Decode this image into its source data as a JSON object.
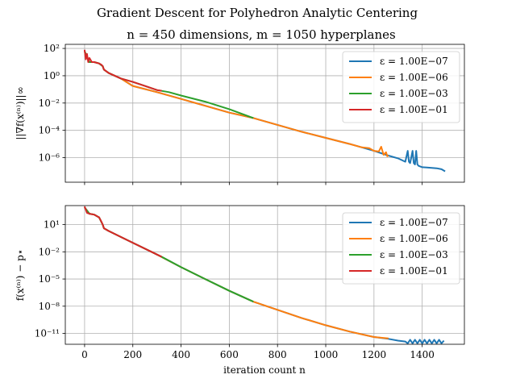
{
  "figure": {
    "suptitle": "Gradient Descent for Polyhedron Analytic Centering",
    "subtitle": "n = 450 dimensions, m = 1050 hyperplanes",
    "xlabel": "iteration count n"
  },
  "chart_data": [
    {
      "type": "line",
      "scale_y": "log",
      "ylabel": "||∇f(x⁽ⁿ⁾)||∞",
      "xlim": [
        -80,
        1575
      ],
      "ylim_log10": [
        -7.8,
        2.3
      ],
      "xticks": [
        {
          "value": 0,
          "label": "0"
        },
        {
          "value": 200,
          "label": "200"
        },
        {
          "value": 400,
          "label": "400"
        },
        {
          "value": 600,
          "label": "600"
        },
        {
          "value": 800,
          "label": "800"
        },
        {
          "value": 1000,
          "label": "1000"
        },
        {
          "value": 1200,
          "label": "1200"
        },
        {
          "value": 1400,
          "label": "1400"
        }
      ],
      "yticks": [
        {
          "exp": 2,
          "label": "10²"
        },
        {
          "exp": 0,
          "label": "10⁰"
        },
        {
          "exp": -2,
          "label": "10⁻²"
        },
        {
          "exp": -4,
          "label": "10⁻⁴"
        },
        {
          "exp": -6,
          "label": "10⁻⁶"
        }
      ],
      "grid": true,
      "legend_position": "top-right",
      "series": [
        {
          "name": "ε = 1.00E−07",
          "color": "#1f77b4",
          "x": [
            0,
            20,
            40,
            60,
            75,
            80,
            100,
            150,
            200,
            300,
            400,
            500,
            600,
            700,
            800,
            900,
            1000,
            1100,
            1200,
            1260,
            1300,
            1330,
            1340,
            1345,
            1350,
            1360,
            1365,
            1370,
            1375,
            1380,
            1385,
            1400,
            1420,
            1440,
            1460,
            1480,
            1495
          ],
          "y_log10": [
            1.8,
            1.0,
            1.0,
            0.9,
            0.7,
            0.45,
            0.2,
            -0.2,
            -0.75,
            -1.2,
            -1.7,
            -2.2,
            -2.7,
            -3.1,
            -3.6,
            -4.1,
            -4.55,
            -5.0,
            -5.5,
            -5.85,
            -6.05,
            -6.3,
            -5.5,
            -6.3,
            -6.4,
            -5.5,
            -6.4,
            -6.5,
            -5.5,
            -6.5,
            -6.6,
            -6.7,
            -6.72,
            -6.75,
            -6.78,
            -6.85,
            -7.0
          ]
        },
        {
          "name": "ε = 1.00E−06",
          "color": "#ff7f0e",
          "x": [
            0,
            20,
            40,
            60,
            75,
            80,
            100,
            150,
            200,
            300,
            400,
            500,
            600,
            700,
            800,
            900,
            1000,
            1100,
            1150,
            1180,
            1200,
            1220,
            1230,
            1240,
            1250,
            1255,
            1260
          ],
          "y_log10": [
            1.8,
            1.0,
            1.0,
            0.9,
            0.7,
            0.45,
            0.2,
            -0.2,
            -0.75,
            -1.2,
            -1.7,
            -2.2,
            -2.7,
            -3.1,
            -3.6,
            -4.1,
            -4.55,
            -5.0,
            -5.25,
            -5.3,
            -5.5,
            -5.55,
            -5.2,
            -5.8,
            -5.6,
            -5.9,
            -5.85
          ]
        },
        {
          "name": "ε = 1.00E−03",
          "color": "#2ca02c",
          "x": [
            0,
            20,
            40,
            60,
            75,
            80,
            100,
            150,
            200,
            250,
            300,
            350,
            400,
            500,
            600,
            700
          ],
          "y_log10": [
            1.8,
            1.0,
            1.0,
            0.9,
            0.7,
            0.45,
            0.2,
            -0.2,
            -0.45,
            -0.75,
            -1.05,
            -1.2,
            -1.45,
            -1.9,
            -2.45,
            -3.1
          ]
        },
        {
          "name": "ε = 1.00E−01",
          "color": "#d62728",
          "x": [
            0,
            5,
            10,
            15,
            20,
            30,
            40,
            50,
            60,
            70,
            75,
            80,
            100,
            150,
            200,
            250,
            300,
            320
          ],
          "y_log10": [
            1.9,
            1.2,
            1.6,
            1.0,
            1.3,
            1.0,
            1.0,
            0.95,
            0.9,
            0.8,
            0.7,
            0.45,
            0.2,
            -0.2,
            -0.45,
            -0.75,
            -1.05,
            -1.1
          ]
        }
      ]
    },
    {
      "type": "line",
      "scale_y": "log",
      "ylabel": "f(x⁽ⁿ⁾) − p⋆",
      "xlim": [
        -80,
        1575
      ],
      "ylim_log10": [
        -12.2,
        3.1
      ],
      "xticks": [
        {
          "value": 0,
          "label": "0"
        },
        {
          "value": 200,
          "label": "200"
        },
        {
          "value": 400,
          "label": "400"
        },
        {
          "value": 600,
          "label": "600"
        },
        {
          "value": 800,
          "label": "800"
        },
        {
          "value": 1000,
          "label": "1000"
        },
        {
          "value": 1200,
          "label": "1200"
        },
        {
          "value": 1400,
          "label": "1400"
        }
      ],
      "yticks": [
        {
          "exp": 1,
          "label": "10¹"
        },
        {
          "exp": -2,
          "label": "10⁻²"
        },
        {
          "exp": -5,
          "label": "10⁻⁵"
        },
        {
          "exp": -8,
          "label": "10⁻⁸"
        },
        {
          "exp": -11,
          "label": "10⁻¹¹"
        }
      ],
      "grid": true,
      "legend_position": "top-right",
      "series": [
        {
          "name": "ε = 1.00E−07",
          "color": "#1f77b4",
          "x": [
            0,
            20,
            40,
            60,
            75,
            80,
            100,
            200,
            300,
            400,
            500,
            600,
            700,
            800,
            900,
            1000,
            1100,
            1200,
            1260,
            1300,
            1330,
            1340,
            1350,
            1360,
            1370,
            1380,
            1390,
            1400,
            1410,
            1420,
            1430,
            1440,
            1450,
            1460,
            1470,
            1480,
            1490
          ],
          "y_log10": [
            2.9,
            2.2,
            2.1,
            1.8,
            1.0,
            0.6,
            0.3,
            -1.0,
            -2.3,
            -3.7,
            -5.0,
            -6.3,
            -7.5,
            -8.4,
            -9.3,
            -10.1,
            -10.8,
            -11.4,
            -11.6,
            -11.8,
            -11.9,
            -12.1,
            -11.7,
            -12.1,
            -11.7,
            -12.1,
            -11.7,
            -12.1,
            -11.7,
            -12.1,
            -11.7,
            -12.1,
            -11.7,
            -12.1,
            -11.7,
            -12.1,
            -11.8
          ]
        },
        {
          "name": "ε = 1.00E−06",
          "color": "#ff7f0e",
          "x": [
            0,
            20,
            40,
            60,
            75,
            80,
            100,
            200,
            300,
            400,
            500,
            600,
            700,
            800,
            900,
            1000,
            1100,
            1200,
            1260
          ],
          "y_log10": [
            2.9,
            2.2,
            2.1,
            1.8,
            1.0,
            0.6,
            0.3,
            -1.0,
            -2.3,
            -3.7,
            -5.0,
            -6.3,
            -7.5,
            -8.4,
            -9.3,
            -10.1,
            -10.8,
            -11.4,
            -11.55
          ]
        },
        {
          "name": "ε = 1.00E−03",
          "color": "#2ca02c",
          "x": [
            0,
            20,
            40,
            60,
            75,
            80,
            100,
            200,
            300,
            320,
            400,
            500,
            600,
            700
          ],
          "y_log10": [
            2.9,
            2.2,
            2.1,
            1.8,
            1.0,
            0.6,
            0.3,
            -1.0,
            -2.3,
            -2.55,
            -3.7,
            -5.0,
            -6.3,
            -7.5
          ]
        },
        {
          "name": "ε = 1.00E−01",
          "color": "#d62728",
          "x": [
            0,
            10,
            20,
            40,
            60,
            70,
            75,
            80,
            100,
            200,
            300,
            320
          ],
          "y_log10": [
            3.0,
            2.3,
            2.2,
            2.1,
            1.8,
            1.3,
            1.0,
            0.6,
            0.3,
            -1.0,
            -2.3,
            -2.55
          ]
        }
      ]
    }
  ]
}
